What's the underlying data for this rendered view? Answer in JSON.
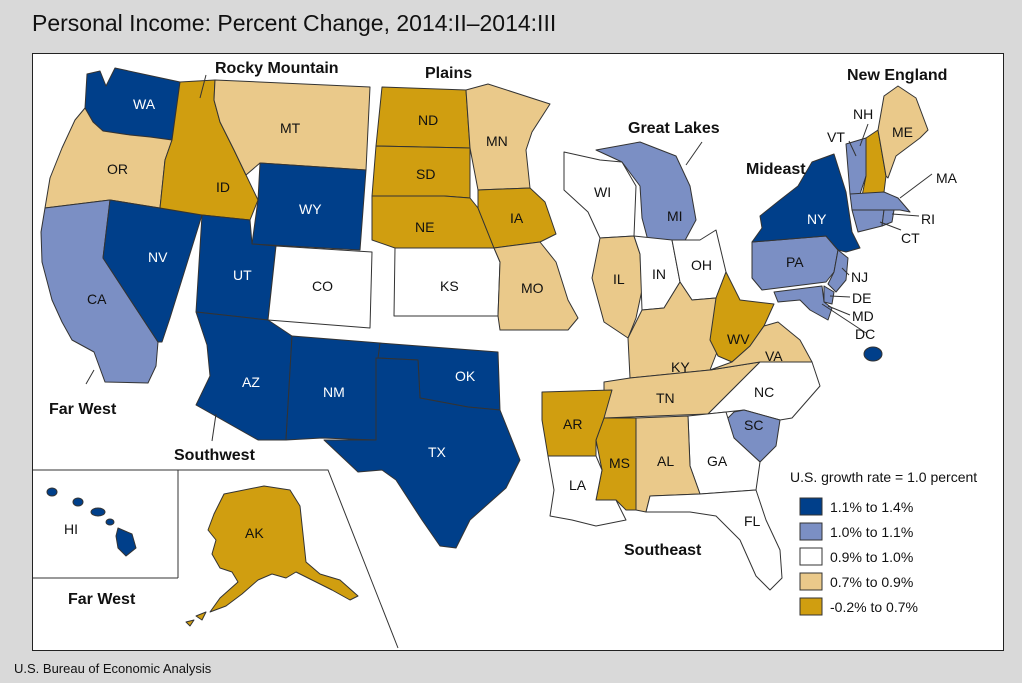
{
  "title": "Personal Income: Percent Change, 2014:II–2014:III",
  "source": "U.S. Bureau of Economic Analysis",
  "colors": {
    "c5": "#003f8a",
    "c4": "#7b8fc4",
    "c3": "#ffffff",
    "c2": "#eac98a",
    "c1": "#d09e10"
  },
  "legend": {
    "note": "U.S. growth rate = 1.0 percent",
    "items": [
      {
        "label": "1.1% to 1.4%",
        "color": "#003f8a"
      },
      {
        "label": "1.0% to 1.1%",
        "color": "#7b8fc4"
      },
      {
        "label": "0.9% to 1.0%",
        "color": "#ffffff"
      },
      {
        "label": "0.7% to 0.9%",
        "color": "#eac98a"
      },
      {
        "label": "-0.2% to 0.7%",
        "color": "#d09e10"
      }
    ]
  },
  "regions": {
    "rocky_mountain": "Rocky Mountain",
    "plains": "Plains",
    "new_england": "New England",
    "great_lakes": "Great Lakes",
    "mideast": "Mideast",
    "far_west": "Far West",
    "far_west_2": "Far West",
    "southwest": "Southwest",
    "southeast": "Southeast"
  },
  "states": {
    "WA": {
      "label": "WA",
      "class": "1.1% to 1.4%"
    },
    "OR": {
      "label": "OR",
      "class": "0.7% to 0.9%"
    },
    "CA": {
      "label": "CA",
      "class": "1.0% to 1.1%"
    },
    "NV": {
      "label": "NV",
      "class": "1.1% to 1.4%"
    },
    "ID": {
      "label": "ID",
      "class": "-0.2% to 0.7%"
    },
    "MT": {
      "label": "MT",
      "class": "0.7% to 0.9%"
    },
    "WY": {
      "label": "WY",
      "class": "1.1% to 1.4%"
    },
    "UT": {
      "label": "UT",
      "class": "1.1% to 1.4%"
    },
    "CO": {
      "label": "CO",
      "class": "0.9% to 1.0%"
    },
    "AZ": {
      "label": "AZ",
      "class": "1.1% to 1.4%"
    },
    "NM": {
      "label": "NM",
      "class": "1.1% to 1.4%"
    },
    "TX": {
      "label": "TX",
      "class": "1.1% to 1.4%"
    },
    "OK": {
      "label": "OK",
      "class": "1.1% to 1.4%"
    },
    "ND": {
      "label": "ND",
      "class": "-0.2% to 0.7%"
    },
    "SD": {
      "label": "SD",
      "class": "-0.2% to 0.7%"
    },
    "NE": {
      "label": "NE",
      "class": "-0.2% to 0.7%"
    },
    "KS": {
      "label": "KS",
      "class": "0.9% to 1.0%"
    },
    "MN": {
      "label": "MN",
      "class": "0.7% to 0.9%"
    },
    "IA": {
      "label": "IA",
      "class": "-0.2% to 0.7%"
    },
    "MO": {
      "label": "MO",
      "class": "0.7% to 0.9%"
    },
    "AR": {
      "label": "AR",
      "class": "-0.2% to 0.7%"
    },
    "LA": {
      "label": "LA",
      "class": "0.9% to 1.0%"
    },
    "WI": {
      "label": "WI",
      "class": "0.9% to 1.0%"
    },
    "MI": {
      "label": "MI",
      "class": "1.0% to 1.1%"
    },
    "IL": {
      "label": "IL",
      "class": "0.7% to 0.9%"
    },
    "IN": {
      "label": "IN",
      "class": "0.9% to 1.0%"
    },
    "OH": {
      "label": "OH",
      "class": "0.9% to 1.0%"
    },
    "KY": {
      "label": "KY",
      "class": "0.7% to 0.9%"
    },
    "TN": {
      "label": "TN",
      "class": "0.7% to 0.9%"
    },
    "MS": {
      "label": "MS",
      "class": "-0.2% to 0.7%"
    },
    "AL": {
      "label": "AL",
      "class": "0.7% to 0.9%"
    },
    "GA": {
      "label": "GA",
      "class": "0.9% to 1.0%"
    },
    "FL": {
      "label": "FL",
      "class": "0.9% to 1.0%"
    },
    "SC": {
      "label": "SC",
      "class": "1.0% to 1.1%"
    },
    "NC": {
      "label": "NC",
      "class": "0.9% to 1.0%"
    },
    "VA": {
      "label": "VA",
      "class": "0.7% to 0.9%"
    },
    "WV": {
      "label": "WV",
      "class": "-0.2% to 0.7%"
    },
    "PA": {
      "label": "PA",
      "class": "1.0% to 1.1%"
    },
    "NY": {
      "label": "NY",
      "class": "1.1% to 1.4%"
    },
    "NJ": {
      "label": "NJ",
      "class": "1.0% to 1.1%"
    },
    "DE": {
      "label": "DE",
      "class": "1.0% to 1.1%"
    },
    "MD": {
      "label": "MD",
      "class": "1.0% to 1.1%"
    },
    "DC": {
      "label": "DC",
      "class": "1.1% to 1.4%"
    },
    "VT": {
      "label": "VT",
      "class": "1.0% to 1.1%"
    },
    "NH": {
      "label": "NH",
      "class": "-0.2% to 0.7%"
    },
    "ME": {
      "label": "ME",
      "class": "0.7% to 0.9%"
    },
    "MA": {
      "label": "MA",
      "class": "1.0% to 1.1%"
    },
    "CT": {
      "label": "CT",
      "class": "1.0% to 1.1%"
    },
    "RI": {
      "label": "RI",
      "class": "1.0% to 1.1%"
    },
    "AK": {
      "label": "AK",
      "class": "-0.2% to 0.7%"
    },
    "HI": {
      "label": "HI",
      "class": "1.1% to 1.4%"
    }
  }
}
